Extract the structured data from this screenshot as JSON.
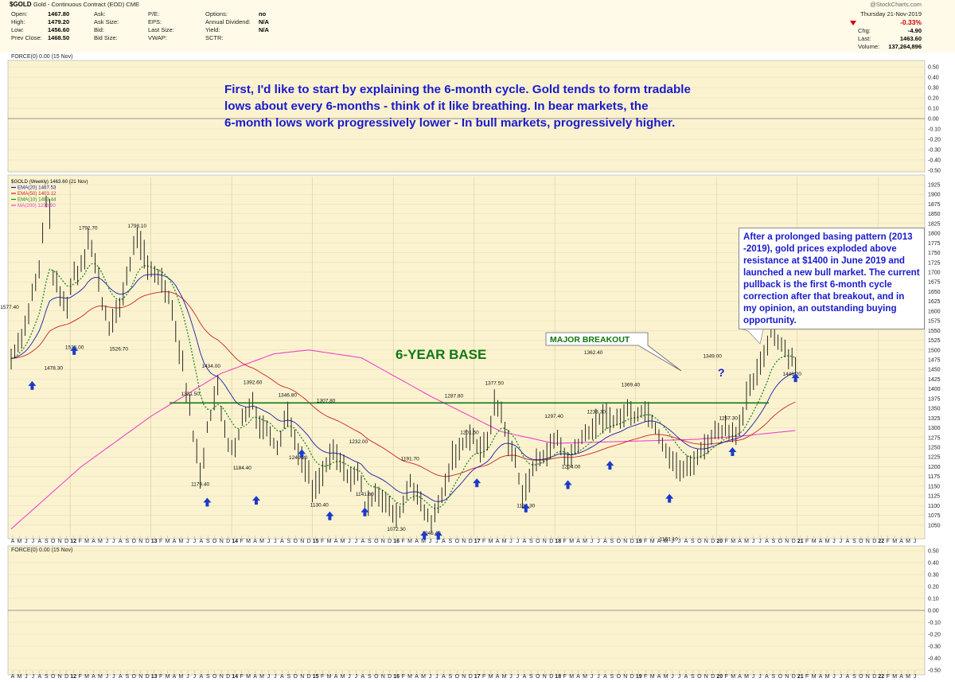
{
  "header": {
    "symbol": "$GOLD",
    "name": "Gold - Continuous Contract (EOD) CME",
    "watermark": "@StockCharts.com",
    "date": "Thursday  21-Nov-2019",
    "col1": [
      [
        "Open:",
        "1467.80"
      ],
      [
        "High:",
        "1479.20"
      ],
      [
        "Low:",
        "1456.60"
      ],
      [
        "Prev Close:",
        "1468.50"
      ]
    ],
    "col2": [
      [
        "Ask:",
        ""
      ],
      [
        "Ask Size:",
        ""
      ],
      [
        "Bid:",
        ""
      ],
      [
        "Bid Size:",
        ""
      ]
    ],
    "col3": [
      [
        "P/E:",
        ""
      ],
      [
        "EPS:",
        ""
      ],
      [
        "Last Size:",
        ""
      ],
      [
        "VWAP:",
        ""
      ]
    ],
    "col4": [
      [
        "Options:",
        "no"
      ],
      [
        "Annual Dividend:",
        "N/A"
      ],
      [
        "Yield:",
        "N/A"
      ],
      [
        "SCTR:",
        ""
      ]
    ],
    "right": [
      [
        "Chg:",
        "-4.90"
      ],
      [
        "Last:",
        "1463.60"
      ],
      [
        "Volume:",
        "137,264,896"
      ]
    ],
    "pct_change": "-0.33%",
    "down_color": "#cc0000"
  },
  "force_top_label": "FORCE(0) 0.00 (15 Nov)",
  "force_bottom_label": "FORCE(0) 0.00 (15 Nov)",
  "legend": [
    {
      "text": "$GOLD (Weekly) 1463.60 (21 Nov)",
      "color": "#000000"
    },
    {
      "text": "EMA(20) 1467.53",
      "color": "#1a1aaa"
    },
    {
      "text": "EMA(50) 1403.12",
      "color": "#cc2222"
    },
    {
      "text": "EMA(10) 1483.44",
      "color": "#228822"
    },
    {
      "text": "MA(200) 1293.90",
      "color": "#ee44cc"
    }
  ],
  "annotations": {
    "top_text": [
      "First, I'd like to start by explaining the 6-month cycle. Gold tends to form tradable",
      "lows about every 6-months - think of it like breathing. In bear markets, the",
      "6-month lows work progressively lower - In bull markets, progressively higher."
    ],
    "base_label": "6-YEAR BASE",
    "breakout_label": "MAJOR BREAKOUT",
    "question": "?",
    "box_text": "After a prolonged basing pattern (2013 -2019), gold prices exploded above resistance at $1400 in June 2019 and launched a new bull market. The current pullback is the first 6-month cycle correction after that breakout, and in my opinion, an outstanding buying opportunity.",
    "text_color": "#1a1acc",
    "base_color": "#117711"
  },
  "chart_data": {
    "type": "line",
    "title": "$GOLD (Weekly) 1463.60 (21 Nov)",
    "ylim": [
      1025,
      1925
    ],
    "y_ticks": [
      1050,
      1075,
      1100,
      1125,
      1150,
      1175,
      1200,
      1225,
      1250,
      1275,
      1300,
      1325,
      1350,
      1375,
      1400,
      1425,
      1450,
      1475,
      1500,
      1525,
      1550,
      1575,
      1600,
      1625,
      1650,
      1675,
      1700,
      1725,
      1750,
      1775,
      1800,
      1825,
      1850,
      1875,
      1900,
      1925
    ],
    "force_ticks": [
      "0.50",
      "0.40",
      "0.30",
      "0.20",
      "0.10",
      "0.00",
      "-0.10",
      "-0.20",
      "-0.30",
      "-0.40",
      "-0.50"
    ],
    "x_labels": [
      "A",
      "M",
      "J",
      "J",
      "A",
      "S",
      "O",
      "N",
      "D",
      "12",
      "F",
      "M",
      "A",
      "M",
      "J",
      "J",
      "A",
      "S",
      "O",
      "N",
      "D",
      "13",
      "F",
      "M",
      "A",
      "M",
      "J",
      "J",
      "A",
      "S",
      "O",
      "N",
      "D",
      "14",
      "F",
      "M",
      "A",
      "M",
      "J",
      "J",
      "A",
      "S",
      "O",
      "N",
      "D",
      "15",
      "F",
      "M",
      "A",
      "M",
      "J",
      "J",
      "A",
      "S",
      "O",
      "N",
      "D",
      "16",
      "F",
      "M",
      "A",
      "M",
      "J",
      "J",
      "A",
      "S",
      "O",
      "N",
      "D",
      "17",
      "F",
      "M",
      "A",
      "M",
      "J",
      "J",
      "A",
      "S",
      "O",
      "N",
      "D",
      "18",
      "F",
      "M",
      "A",
      "M",
      "J",
      "J",
      "A",
      "S",
      "O",
      "N",
      "D",
      "19",
      "F",
      "M",
      "A",
      "M",
      "J",
      "J",
      "A",
      "S",
      "O",
      "N",
      "D",
      "20",
      "F",
      "M",
      "A",
      "M",
      "J",
      "J",
      "A",
      "S",
      "O",
      "N",
      "D",
      "21",
      "F",
      "M",
      "A",
      "M",
      "J",
      "J",
      "A",
      "S",
      "O",
      "N",
      "D",
      "22",
      "F",
      "M",
      "A",
      "M",
      "J"
    ],
    "price_path": [
      [
        0,
        1478
      ],
      [
        2,
        1520
      ],
      [
        4,
        1560
      ],
      [
        6,
        1640
      ],
      [
        8,
        1700
      ],
      [
        9,
        1800
      ],
      [
        10,
        1880
      ],
      [
        11,
        1850
      ],
      [
        12,
        1690
      ],
      [
        14,
        1640
      ],
      [
        15,
        1620
      ],
      [
        16,
        1620
      ],
      [
        18,
        1700
      ],
      [
        19,
        1700
      ],
      [
        21,
        1745
      ],
      [
        22,
        1795
      ],
      [
        24,
        1720
      ],
      [
        25,
        1680
      ],
      [
        26,
        1620
      ],
      [
        27,
        1590
      ],
      [
        28,
        1560
      ],
      [
        30,
        1590
      ],
      [
        31,
        1610
      ],
      [
        33,
        1690
      ],
      [
        34,
        1720
      ],
      [
        35,
        1760
      ],
      [
        36,
        1795
      ],
      [
        37,
        1770
      ],
      [
        38,
        1745
      ],
      [
        39,
        1710
      ],
      [
        40,
        1700
      ],
      [
        42,
        1690
      ],
      [
        43,
        1680
      ],
      [
        44,
        1660
      ],
      [
        45,
        1640
      ],
      [
        46,
        1600
      ],
      [
        47,
        1560
      ],
      [
        48,
        1500
      ],
      [
        49,
        1470
      ],
      [
        50,
        1400
      ],
      [
        51,
        1350
      ],
      [
        52,
        1280
      ],
      [
        53,
        1240
      ],
      [
        54,
        1180
      ],
      [
        55,
        1230
      ],
      [
        56,
        1300
      ],
      [
        57,
        1330
      ],
      [
        58,
        1380
      ],
      [
        59,
        1400
      ],
      [
        60,
        1330
      ],
      [
        61,
        1300
      ],
      [
        62,
        1260
      ],
      [
        63,
        1250
      ],
      [
        64,
        1240
      ],
      [
        65,
        1280
      ],
      [
        66,
        1320
      ],
      [
        67,
        1330
      ],
      [
        68,
        1350
      ],
      [
        69,
        1380
      ],
      [
        70,
        1330
      ],
      [
        71,
        1310
      ],
      [
        72,
        1300
      ],
      [
        73,
        1300
      ],
      [
        74,
        1290
      ],
      [
        75,
        1260
      ],
      [
        76,
        1250
      ],
      [
        77,
        1280
      ],
      [
        78,
        1320
      ],
      [
        79,
        1340
      ],
      [
        80,
        1300
      ],
      [
        81,
        1280
      ],
      [
        82,
        1230
      ],
      [
        84,
        1200
      ],
      [
        85,
        1180
      ],
      [
        86,
        1140
      ],
      [
        88,
        1170
      ],
      [
        90,
        1200
      ],
      [
        92,
        1240
      ],
      [
        94,
        1210
      ],
      [
        96,
        1180
      ],
      [
        98,
        1170
      ],
      [
        99,
        1180
      ],
      [
        100,
        1160
      ],
      [
        101,
        1090
      ],
      [
        102,
        1100
      ],
      [
        104,
        1140
      ],
      [
        106,
        1120
      ],
      [
        108,
        1090
      ],
      [
        110,
        1070
      ],
      [
        112,
        1100
      ],
      [
        113,
        1140
      ],
      [
        114,
        1160
      ],
      [
        116,
        1130
      ],
      [
        117,
        1100
      ],
      [
        118,
        1080
      ],
      [
        120,
        1060
      ],
      [
        121,
        1070
      ],
      [
        122,
        1100
      ],
      [
        124,
        1150
      ],
      [
        126,
        1230
      ],
      [
        128,
        1240
      ],
      [
        130,
        1280
      ],
      [
        132,
        1280
      ],
      [
        133,
        1250
      ],
      [
        134,
        1240
      ],
      [
        136,
        1270
      ],
      [
        138,
        1360
      ],
      [
        139,
        1350
      ],
      [
        140,
        1340
      ],
      [
        141,
        1300
      ],
      [
        142,
        1260
      ],
      [
        144,
        1220
      ],
      [
        145,
        1170
      ],
      [
        146,
        1130
      ],
      [
        148,
        1170
      ],
      [
        150,
        1210
      ],
      [
        152,
        1230
      ],
      [
        154,
        1250
      ],
      [
        156,
        1270
      ],
      [
        158,
        1230
      ],
      [
        159,
        1210
      ],
      [
        160,
        1230
      ],
      [
        162,
        1260
      ],
      [
        164,
        1280
      ],
      [
        166,
        1300
      ],
      [
        168,
        1320
      ],
      [
        170,
        1330
      ],
      [
        172,
        1320
      ],
      [
        174,
        1320
      ],
      [
        175,
        1340
      ],
      [
        176,
        1345
      ],
      [
        178,
        1330
      ],
      [
        180,
        1345
      ],
      [
        182,
        1340
      ],
      [
        184,
        1300
      ],
      [
        186,
        1260
      ],
      [
        188,
        1230
      ],
      [
        190,
        1200
      ],
      [
        192,
        1190
      ],
      [
        194,
        1200
      ],
      [
        196,
        1230
      ],
      [
        198,
        1250
      ],
      [
        200,
        1280
      ],
      [
        202,
        1290
      ],
      [
        204,
        1300
      ],
      [
        206,
        1290
      ],
      [
        207,
        1290
      ],
      [
        208,
        1310
      ],
      [
        209,
        1320
      ],
      [
        210,
        1380
      ],
      [
        212,
        1420
      ],
      [
        214,
        1460
      ],
      [
        216,
        1520
      ],
      [
        217,
        1560
      ],
      [
        218,
        1540
      ],
      [
        220,
        1510
      ],
      [
        222,
        1490
      ],
      [
        224,
        1463
      ]
    ]
  }
}
